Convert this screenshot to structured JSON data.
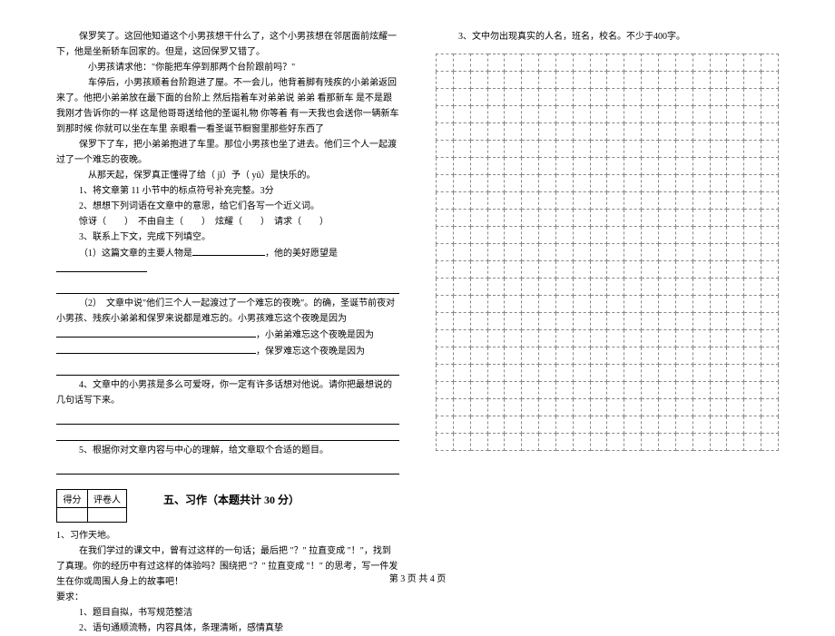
{
  "left": {
    "p1": "保罗笑了。这回他知道这个小男孩想干什么了，这个小男孩想在邻居面前炫耀一下，他是坐新轿车回家的。但是，这回保罗又错了。",
    "p2": "小男孩请求他：\"你能把车停到那两个台阶跟前吗？\"",
    "p3": "车停后，小男孩顺着台阶跑进了屋。不一会儿，他背着脚有残疾的小弟弟返回来了。他把小弟弟放在最下面的台阶上  然后指着车对弟弟说  弟弟  看那新车  是不是跟我刚才告诉你的一样  这是他哥哥送给他的圣诞礼物  你等着  有一天我也会送你一辆新车  到那时候  你就可以坐在车里  亲眼看一看圣诞节橱窗里那些好东西了",
    "p4": "保罗下了车，把小弟弟抱进了车里。那位小男孩也坐了进去。他们三个人一起渡过了一个难忘的夜晚。",
    "p5": "从那天起，保罗真正懂得了给（  jǐ）予（  yǔ）是快乐的。",
    "q1": "1、将文章第 11 小节中的标点符号补充完整。3分",
    "q2": "2、想想下列词语在文章中的意思，给它们各写一个近义词。",
    "q2line": "惊讶（　　）　不由自主（　　）　炫耀（　　）　请求（　　）",
    "q3": "3、联系上下文，完成下列填空。",
    "q3a_before": "（1）这篇文章的主要人物是",
    "q3a_after": "，他的美好愿望是",
    "q3b_before": "（2）　文章中说\"他们三个人一起渡过了一个难忘的夜晚\"。的确，圣诞节前夜对小男孩、残疾小弟弟和保罗来说都是难忘的。小男孩难忘这个夜晚是因为",
    "q3b_mid1": "，小弟弟难忘这个夜晚是因为",
    "q3b_mid2": "，保罗难忘这个夜晚是因为",
    "q4": "4、文章中的小男孩是多么可爱呀，你一定有许多话想对他说。请你把最想说的几句话写下来。",
    "q5": "5、根据你对文章内容与中心的理解，给文章取个合适的题目。",
    "score": {
      "h1": "得分",
      "h2": "评卷人"
    },
    "section5": "五、习作（本题共计 30 分）",
    "w1": "1、习作天地。",
    "w2": "在我们学过的课文中，曾有过这样的一句话；最后把 \"？\" 拉直变成 \"！\"，找到了真理。你的经历中有过这样的体验吗？围绕把 \"？\" 拉直变成 \"！\" 的思考，写一件发生在你或周围人身上的故事吧！",
    "req_label": "要求：",
    "req1": "1、题目自拟，书写规范整洁",
    "req2": "2、语句通顺流畅，内容具体，条理清晰，感情真挚"
  },
  "right": {
    "req3": "3、文中勿出现真实的人名，班名，校名。不少于400字。",
    "grid": {
      "rows": 23,
      "cols": 20
    }
  },
  "footer": "第 3 页 共 4 页"
}
